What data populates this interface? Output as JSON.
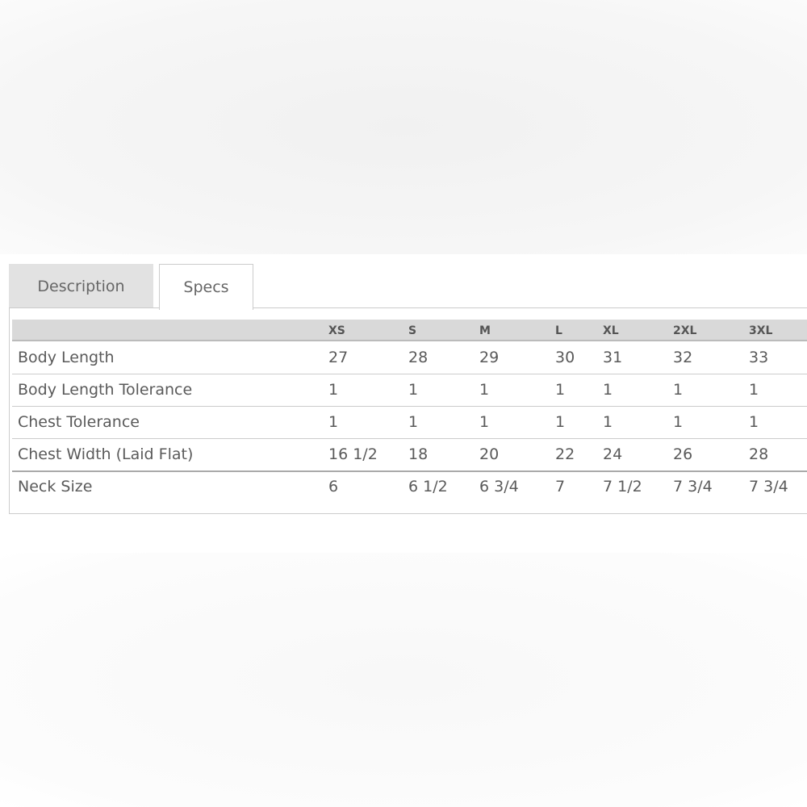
{
  "tabs": [
    "Description",
    "Specs"
  ],
  "table": {
    "columns": [
      "XS",
      "S",
      "M",
      "L",
      "XL",
      "2XL",
      "3XL"
    ],
    "rows": [
      [
        "Body Length",
        "27",
        "28",
        "29",
        "30",
        "31",
        "32",
        "33"
      ],
      [
        "Body Length Tolerance",
        "1",
        "1",
        "1",
        "1",
        "1",
        "1",
        "1"
      ],
      [
        "Chest Tolerance",
        "1",
        "1",
        "1",
        "1",
        "1",
        "1",
        "1"
      ],
      [
        "Chest Width (Laid Flat)",
        "16 1/2",
        "18",
        "20",
        "22",
        "24",
        "26",
        "28"
      ],
      [
        "Neck Size",
        "6",
        "6 1/2",
        "6 3/4",
        "7",
        "7 1/2",
        "7 3/4",
        "7 3/4"
      ]
    ]
  }
}
